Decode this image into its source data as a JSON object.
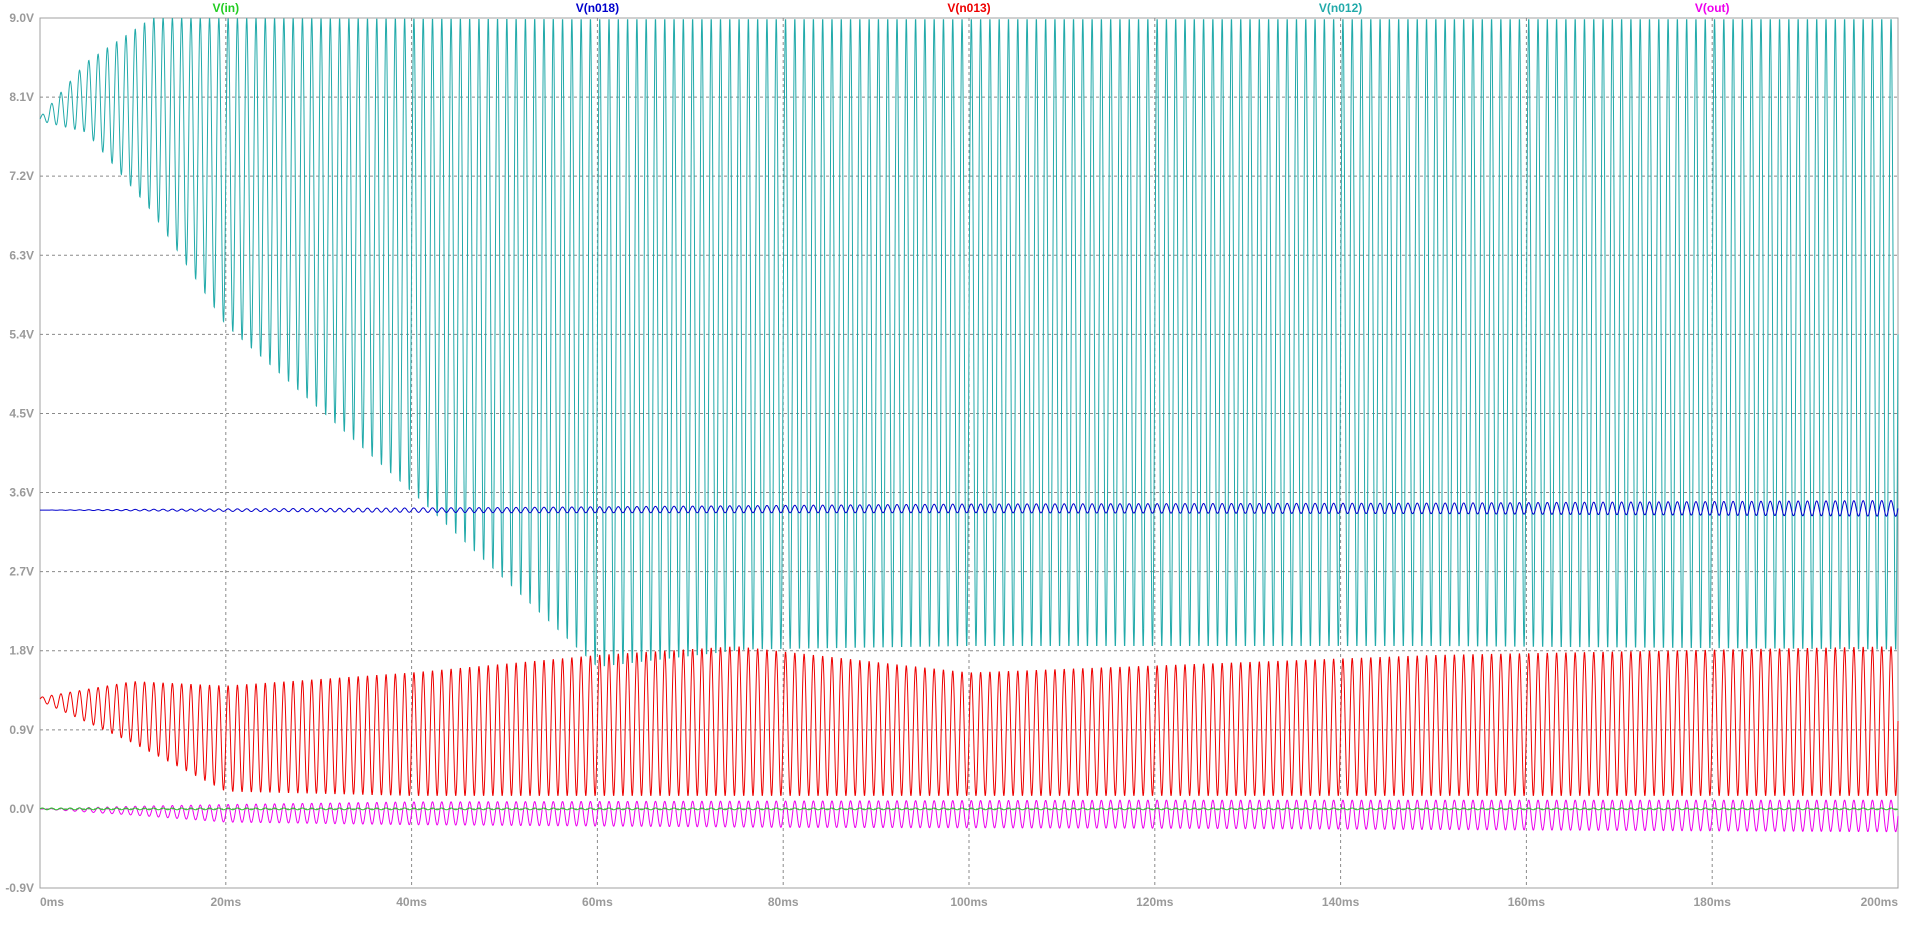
{
  "chart_data": {
    "type": "line",
    "xlim": [
      0,
      200
    ],
    "ylim": [
      -0.9,
      9.0
    ],
    "x_unit": "ms",
    "x_ticks": [
      0,
      20,
      40,
      60,
      80,
      100,
      120,
      140,
      160,
      180,
      200
    ],
    "x_tick_labels": [
      "0ms",
      "20ms",
      "40ms",
      "60ms",
      "80ms",
      "100ms",
      "120ms",
      "140ms",
      "160ms",
      "180ms",
      "200ms"
    ],
    "y_ticks": [
      9.0,
      8.1,
      7.2,
      6.3,
      5.4,
      4.5,
      3.6,
      2.7,
      1.8,
      0.9,
      0.0,
      -0.9
    ],
    "y_tick_labels": [
      "9.0V",
      "8.1V",
      "7.2V",
      "6.3V",
      "5.4V",
      "4.5V",
      "3.6V",
      "2.7V",
      "1.8V",
      "0.9V",
      "0.0V",
      "-0.9V"
    ],
    "grid": true,
    "legend_placement": "top",
    "series": [
      {
        "name": "V(in)",
        "color": "#22cc22",
        "x": [
          0,
          200
        ],
        "center": [
          0.0,
          0.0
        ],
        "amplitude": [
          0.01,
          0.01
        ]
      },
      {
        "name": "V(n018)",
        "color": "#0000cc",
        "x": [
          0,
          12,
          50,
          100,
          150,
          200
        ],
        "center": [
          3.4,
          3.4,
          3.4,
          3.42,
          3.42,
          3.42
        ],
        "amplitude": [
          0.0,
          0.01,
          0.03,
          0.05,
          0.06,
          0.09
        ]
      },
      {
        "name": "V(n013)",
        "color": "#ee0000",
        "x": [
          0,
          10,
          20,
          40,
          60,
          75,
          100,
          150,
          200
        ],
        "center": [
          1.25,
          1.1,
          0.8,
          0.85,
          0.95,
          1.0,
          0.85,
          0.95,
          1.0
        ],
        "amplitude": [
          0.02,
          0.35,
          0.6,
          0.7,
          0.8,
          0.85,
          0.7,
          0.8,
          0.85
        ]
      },
      {
        "name": "V(n012)",
        "color": "#22aaaa",
        "x": [
          0,
          5,
          12,
          20,
          40,
          60,
          76,
          100,
          150,
          200
        ],
        "center": [
          7.85,
          8.1,
          7.9,
          7.25,
          6.3,
          5.3,
          5.4,
          5.42,
          5.42,
          5.4
        ],
        "amplitude": [
          0.02,
          0.4,
          1.1,
          1.75,
          2.7,
          3.7,
          3.6,
          3.58,
          3.58,
          3.6
        ]
      },
      {
        "name": "V(out)",
        "color": "#ee00ee",
        "x": [
          0,
          10,
          20,
          40,
          80,
          120,
          160,
          200
        ],
        "center": [
          0.0,
          -0.02,
          -0.05,
          -0.05,
          -0.06,
          -0.06,
          -0.07,
          -0.08
        ],
        "amplitude": [
          0.0,
          0.05,
          0.1,
          0.13,
          0.15,
          0.16,
          0.17,
          0.18
        ]
      }
    ],
    "cycles_full_range": 200
  }
}
